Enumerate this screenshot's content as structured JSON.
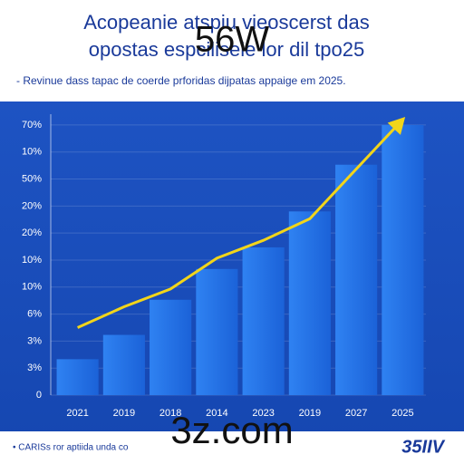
{
  "chart_data": {
    "type": "bar",
    "title_lines": [
      "Acopeanie atspiu vieoscerst das",
      "opostas espcilisele lor dil tpo25"
    ],
    "overlay_top": "56W",
    "subtitle": "- Revinue dass tapac de coerde prforidas dijpatas appaige em 2025.",
    "categories": [
      "2021",
      "2019",
      "2018",
      "2014",
      "2023",
      "2019",
      "2027",
      "2025"
    ],
    "values": [
      1.33,
      2.23,
      3.53,
      4.67,
      5.47,
      6.8,
      8.53,
      10
    ],
    "color": "#1f6fe6",
    "trend_values": [
      2.5,
      3.27,
      3.93,
      5.07,
      5.73,
      6.53,
      8.37,
      10.2
    ],
    "trend_color": "#f2d51a",
    "ylim": [
      0,
      10.4
    ],
    "yticks": [
      0,
      {
        "value": 1,
        "label": "3%"
      },
      {
        "value": 2,
        "label": "3%"
      },
      {
        "value": 3,
        "label": "6%"
      },
      {
        "value": 4,
        "label": "10%"
      },
      {
        "value": 5,
        "label": "10%"
      },
      {
        "value": 6,
        "label": "20%"
      },
      {
        "value": 7,
        "label": "20%"
      },
      {
        "value": 8,
        "label": "50%"
      },
      {
        "value": 9,
        "label": "10%"
      },
      {
        "value": 10,
        "label": "70%"
      }
    ],
    "grid": true,
    "overlay_bottom": "3z.com",
    "footer_note": "• CARISs ror aptiida unda co",
    "logo": "35IIV"
  }
}
